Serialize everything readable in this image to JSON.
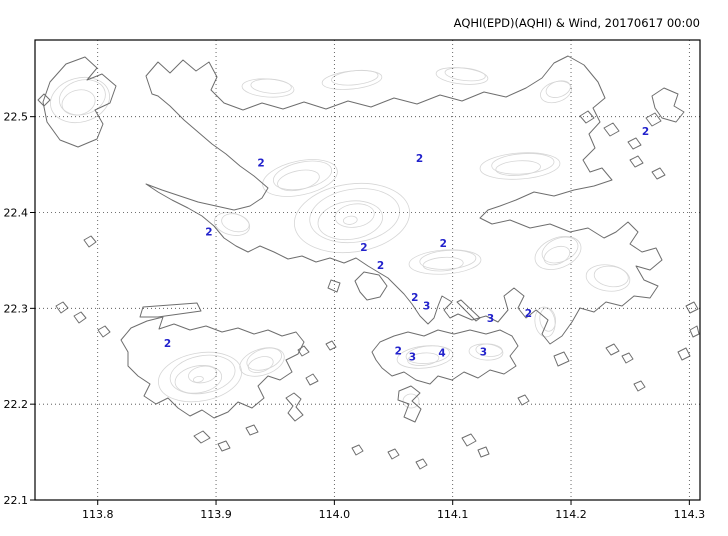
{
  "header": {
    "title": "AQHI(EPD)(AQHI) & Wind, 20170617 00:00"
  },
  "chart_data": {
    "type": "scatter",
    "title": "AQHI(EPD)(AQHI) & Wind, 20170617 00:00",
    "subtitle": "",
    "legend": "none",
    "grid": "dotted",
    "marker_color": "#2222cc",
    "coast_color": "#6e6e6e",
    "contour_color": "#d6d6d6",
    "grid_color": "#444444",
    "x_axis": {
      "label": "",
      "range": [
        113.747,
        114.309
      ],
      "ticks": [
        "113.8",
        "113.9",
        "114.0",
        "114.1",
        "114.2",
        "114.3"
      ]
    },
    "y_axis": {
      "label": "",
      "range": [
        22.1,
        22.58
      ],
      "ticks": [
        "22.5",
        "22.4",
        "22.3",
        "22.2",
        "22.1"
      ]
    },
    "stations": [
      {
        "aqhi": 2,
        "lon": 113.938,
        "lat": 22.452
      },
      {
        "aqhi": 2,
        "lon": 114.072,
        "lat": 22.457
      },
      {
        "aqhi": 2,
        "lon": 114.263,
        "lat": 22.485
      },
      {
        "aqhi": 2,
        "lon": 113.894,
        "lat": 22.38
      },
      {
        "aqhi": 2,
        "lon": 114.025,
        "lat": 22.364
      },
      {
        "aqhi": 2,
        "lon": 114.092,
        "lat": 22.368
      },
      {
        "aqhi": 2,
        "lon": 114.039,
        "lat": 22.345
      },
      {
        "aqhi": 2,
        "lon": 114.068,
        "lat": 22.312
      },
      {
        "aqhi": 3,
        "lon": 114.078,
        "lat": 22.303
      },
      {
        "aqhi": 3,
        "lon": 114.132,
        "lat": 22.29
      },
      {
        "aqhi": 2,
        "lon": 114.164,
        "lat": 22.295
      },
      {
        "aqhi": 2,
        "lon": 113.859,
        "lat": 22.264
      },
      {
        "aqhi": 2,
        "lon": 114.054,
        "lat": 22.256
      },
      {
        "aqhi": 3,
        "lon": 114.066,
        "lat": 22.25
      },
      {
        "aqhi": 4,
        "lon": 114.091,
        "lat": 22.254
      },
      {
        "aqhi": 3,
        "lon": 114.126,
        "lat": 22.255
      }
    ]
  }
}
